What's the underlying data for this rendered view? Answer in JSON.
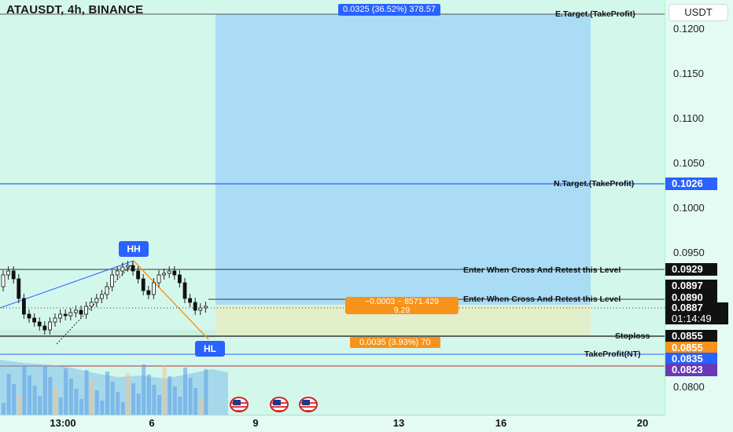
{
  "header": {
    "title": "ATAUSDT, 4h, BINANCE",
    "currency": "USDT"
  },
  "range_box": {
    "label": "0.0325 (36.52%) 378.57"
  },
  "y_axis": {
    "labels": [
      "0.1200",
      "0.1150",
      "0.1100",
      "0.1050",
      "0.1000",
      "0.0950",
      "0.0800"
    ]
  },
  "x_axis": {
    "labels": [
      "13:00",
      "6",
      "9",
      "13",
      "16",
      "20"
    ]
  },
  "levels": {
    "e_target": {
      "label": "E.Target.(TakeProfit)"
    },
    "n_target": {
      "label": "N.Target.(TakeProfit)",
      "price": "0.1026"
    },
    "enter1": {
      "label": "Enter When Cross And Retest this Level",
      "price": "0.0929"
    },
    "enter2": {
      "label": "Enter When Cross And Retest this Level",
      "price": "0.0890"
    },
    "stoploss": {
      "label": "Stoploss",
      "price": "0.0855"
    },
    "takeprofit_nt": {
      "label": "TakeProfit(NT)",
      "price": "0.0835"
    }
  },
  "price_tags": {
    "p0897": "0.0897",
    "current": "0.0887",
    "countdown": "01:14:49",
    "orange": "0.0855",
    "purple": "0.0823"
  },
  "position_info": {
    "line1": "−0.0003 ~ 8571.429",
    "line2": "9.29",
    "risk": "0.0035 (3.93%) 70"
  },
  "pivots": {
    "hh": "HH",
    "hl": "HL"
  },
  "colors": {
    "background": "#d4f7ec",
    "target_box": "#a8daf5",
    "accent_blue": "#2962ff",
    "orange": "#f7931a",
    "purple": "#673ab7"
  },
  "icons": [
    "us-flag-icon",
    "us-flag-icon",
    "us-flag-icon"
  ]
}
